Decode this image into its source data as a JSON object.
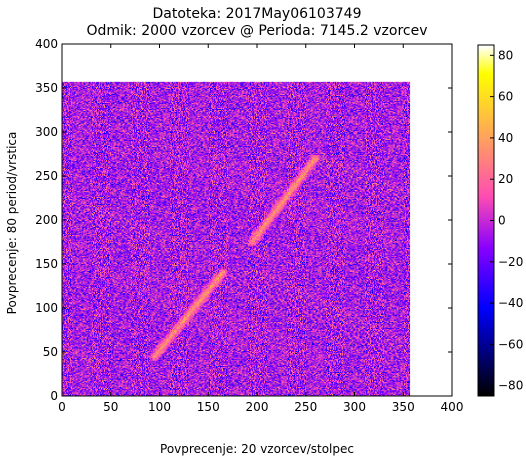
{
  "chart_data": {
    "type": "heatmap",
    "title": "Datoteka: 2017May06103749",
    "subtitle": "Odmik: 2000 vzorcev @ Perioda: 7145.2 vzorcev",
    "xlabel": "Povprecenje: 20 vzorcev/stolpec",
    "ylabel": "Povprecenje: 80 period/vrstica",
    "xlim": [
      0,
      400
    ],
    "ylim": [
      0,
      400
    ],
    "x_ticks": [
      "0",
      "50",
      "100",
      "150",
      "200",
      "250",
      "300",
      "350",
      "400"
    ],
    "y_ticks": [
      "0",
      "50",
      "100",
      "150",
      "200",
      "250",
      "300",
      "350",
      "400"
    ],
    "data_extent": {
      "x": [
        0,
        357
      ],
      "y": [
        0,
        357
      ]
    },
    "colormap": "gnuplot2",
    "colorbar": {
      "range": [
        -85,
        85
      ],
      "ticks": [
        "80",
        "60",
        "40",
        "20",
        "0",
        "−20",
        "−40",
        "−60",
        "−80"
      ]
    },
    "features": [
      {
        "name": "diagonal-streak-lower",
        "from": [
          95,
          45
        ],
        "to": [
          165,
          140
        ],
        "level": 40
      },
      {
        "name": "diagonal-streak-upper",
        "from": [
          195,
          175
        ],
        "to": [
          260,
          270
        ],
        "level": 40
      }
    ],
    "background_level_mean": -5,
    "background_level_spread": 35
  }
}
